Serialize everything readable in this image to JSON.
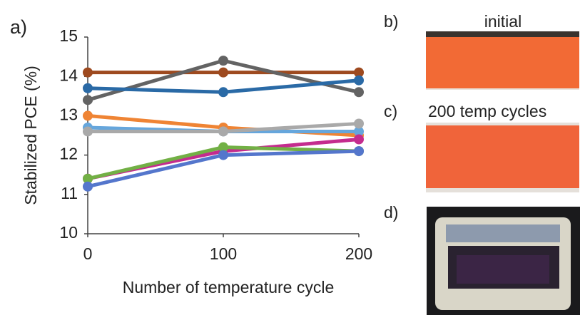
{
  "chart_data": {
    "type": "line",
    "panel_label": "a)",
    "x_label": "Number of temperature cycle",
    "y_label": "Stabilized PCE (%)",
    "x": [
      0,
      100,
      200
    ],
    "xlim": [
      0,
      200
    ],
    "xticks": [
      0,
      100,
      200
    ],
    "ylim": [
      10,
      15
    ],
    "yticks": [
      10,
      11,
      12,
      13,
      14,
      15
    ],
    "series": [
      {
        "color": "#9e4a1f",
        "values": [
          14.1,
          14.1,
          14.1
        ]
      },
      {
        "color": "#636363",
        "values": [
          13.4,
          14.4,
          13.6
        ]
      },
      {
        "color": "#2a6aa6",
        "values": [
          13.7,
          13.6,
          13.9
        ]
      },
      {
        "color": "#ef8434",
        "values": [
          13.0,
          12.7,
          12.5
        ]
      },
      {
        "color": "#66a6dc",
        "values": [
          12.7,
          12.6,
          12.6
        ]
      },
      {
        "color": "#a9a9a9",
        "values": [
          12.6,
          12.6,
          12.8
        ]
      },
      {
        "color": "#c42c8e",
        "values": [
          11.4,
          12.1,
          12.4
        ]
      },
      {
        "color": "#72b045",
        "values": [
          11.4,
          12.2,
          12.1
        ]
      },
      {
        "color": "#5476cc",
        "values": [
          11.2,
          12.0,
          12.1
        ]
      }
    ]
  },
  "photos": {
    "b_label": "b)",
    "b_caption": "initial",
    "c_label": "c)",
    "c_caption": "200 temp cycles",
    "d_label": "d)"
  }
}
